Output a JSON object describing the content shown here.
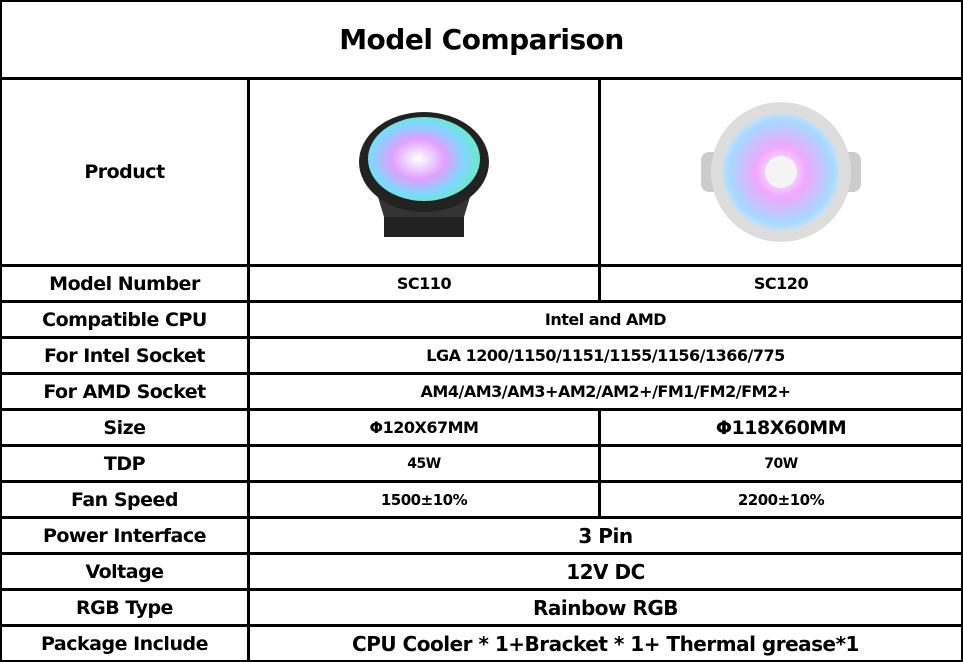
{
  "header": {
    "title": "Model Comparison"
  },
  "table": {
    "product_label": "Product",
    "rows": [
      [
        "Model Number",
        "SC110",
        "SC120"
      ],
      [
        "Compatible CPU",
        "Intel and AMD"
      ],
      [
        "For Intel Socket",
        "LGA 1200/1150/1151/1155/1156/1366/775"
      ],
      [
        "For AMD Socket",
        "AM4/AM3/AM3+AM2/AM2+/FM1/FM2/FM2+"
      ],
      [
        "Size",
        "Φ120X67MM",
        "Φ118X60MM"
      ],
      [
        "TDP",
        "45W",
        "70W"
      ],
      [
        "Fan Speed",
        "1500±10%",
        "2200±10%"
      ],
      [
        "Power Interface",
        "3 Pin"
      ],
      [
        "Voltage",
        "12V DC"
      ],
      [
        "RGB Type",
        "Rainbow RGB"
      ],
      [
        "Package Include",
        "CPU Cooler * 1+Bracket * 1+ Thermal grease*1"
      ]
    ]
  }
}
